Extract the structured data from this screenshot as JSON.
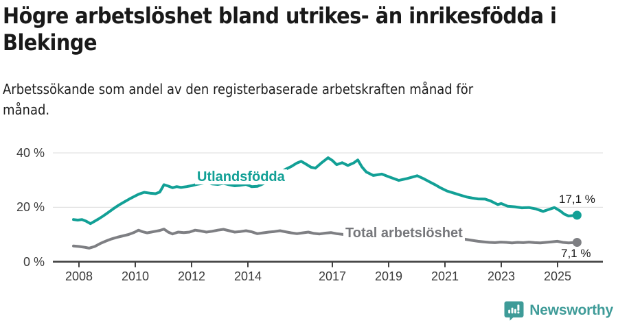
{
  "header": {
    "title_lines": [
      "Högre arbetslöshet bland utrikes- än inrikesfödda i",
      "Blekinge"
    ],
    "subtitle_lines": [
      "Arbetssökande som andel av den registerbaserade arbetskraften månad för",
      "månad."
    ]
  },
  "chart_data": {
    "type": "line",
    "title": "Högre arbetslöshet bland utrikes- än inrikesfödda i Blekinge",
    "subtitle": "Arbetssökande som andel av den registerbaserade arbetskraften månad för månad.",
    "xlabel": "",
    "ylabel": "",
    "ylim": [
      0,
      42
    ],
    "xlim": [
      2008,
      2025.9
    ],
    "grid": "horizontal-only",
    "legend_position": "inline-labels-on-lines",
    "y_ticks": [
      {
        "value": 40,
        "label": "40 %"
      },
      {
        "value": 20,
        "label": "20 %"
      },
      {
        "value": 0,
        "label": "0 %"
      }
    ],
    "x_ticks": [
      {
        "value": 2008,
        "label": "2008"
      },
      {
        "value": 2010,
        "label": "2010"
      },
      {
        "value": 2012,
        "label": "2012"
      },
      {
        "value": 2014,
        "label": "2014"
      },
      {
        "value": 2017,
        "label": "2017"
      },
      {
        "value": 2019,
        "label": "2019"
      },
      {
        "value": 2021,
        "label": "2021"
      },
      {
        "value": 2023,
        "label": "2023"
      },
      {
        "value": 2025,
        "label": "2025"
      }
    ],
    "series": [
      {
        "name": "Utlandsfödda",
        "color": "#12A096",
        "end_value": 17.1,
        "end_label": "17,1 %",
        "points": [
          [
            2008.0,
            15.5
          ],
          [
            2008.15,
            15.3
          ],
          [
            2008.3,
            15.5
          ],
          [
            2008.45,
            14.9
          ],
          [
            2008.6,
            14.0
          ],
          [
            2008.75,
            14.9
          ],
          [
            2008.9,
            15.8
          ],
          [
            2009.05,
            16.8
          ],
          [
            2009.2,
            17.9
          ],
          [
            2009.4,
            19.4
          ],
          [
            2009.6,
            20.8
          ],
          [
            2009.8,
            22.0
          ],
          [
            2010.0,
            23.2
          ],
          [
            2010.15,
            24.0
          ],
          [
            2010.3,
            24.8
          ],
          [
            2010.5,
            25.5
          ],
          [
            2010.7,
            25.2
          ],
          [
            2010.9,
            25.0
          ],
          [
            2011.05,
            25.6
          ],
          [
            2011.2,
            28.3
          ],
          [
            2011.35,
            27.8
          ],
          [
            2011.5,
            27.2
          ],
          [
            2011.65,
            27.6
          ],
          [
            2011.8,
            27.3
          ],
          [
            2012.0,
            27.6
          ],
          [
            2012.2,
            28.0
          ],
          [
            2012.4,
            28.5
          ],
          [
            2012.6,
            28.9
          ],
          [
            2012.75,
            29.2
          ],
          [
            2012.9,
            28.6
          ],
          [
            2013.1,
            28.4
          ],
          [
            2013.3,
            28.8
          ],
          [
            2013.5,
            28.3
          ],
          [
            2013.7,
            27.9
          ],
          [
            2013.9,
            28.1
          ],
          [
            2014.1,
            28.4
          ],
          [
            2014.3,
            27.6
          ],
          [
            2014.5,
            27.7
          ],
          [
            2014.7,
            28.6
          ],
          [
            2014.9,
            30.0
          ],
          [
            2015.1,
            31.5
          ],
          [
            2015.3,
            32.8
          ],
          [
            2015.5,
            34.0
          ],
          [
            2015.7,
            35.0
          ],
          [
            2015.9,
            36.3
          ],
          [
            2016.05,
            36.9
          ],
          [
            2016.2,
            36.0
          ],
          [
            2016.4,
            34.7
          ],
          [
            2016.55,
            34.4
          ],
          [
            2016.75,
            36.2
          ],
          [
            2017.0,
            38.2
          ],
          [
            2017.15,
            37.2
          ],
          [
            2017.3,
            35.7
          ],
          [
            2017.5,
            36.4
          ],
          [
            2017.7,
            35.4
          ],
          [
            2017.9,
            36.3
          ],
          [
            2018.05,
            37.4
          ],
          [
            2018.2,
            34.8
          ],
          [
            2018.35,
            33.0
          ],
          [
            2018.6,
            31.7
          ],
          [
            2018.9,
            32.2
          ],
          [
            2019.15,
            31.2
          ],
          [
            2019.5,
            29.9
          ],
          [
            2019.8,
            30.6
          ],
          [
            2020.15,
            31.6
          ],
          [
            2020.4,
            30.4
          ],
          [
            2020.6,
            29.3
          ],
          [
            2020.8,
            28.2
          ],
          [
            2020.95,
            27.3
          ],
          [
            2021.2,
            26.0
          ],
          [
            2021.45,
            25.2
          ],
          [
            2021.7,
            24.4
          ],
          [
            2021.9,
            23.8
          ],
          [
            2022.1,
            23.4
          ],
          [
            2022.3,
            23.1
          ],
          [
            2022.55,
            23.0
          ],
          [
            2022.75,
            22.3
          ],
          [
            2023.0,
            21.0
          ],
          [
            2023.12,
            21.4
          ],
          [
            2023.35,
            20.4
          ],
          [
            2023.6,
            20.2
          ],
          [
            2023.85,
            19.8
          ],
          [
            2024.1,
            19.9
          ],
          [
            2024.35,
            19.4
          ],
          [
            2024.6,
            18.5
          ],
          [
            2024.8,
            19.2
          ],
          [
            2025.0,
            19.9
          ],
          [
            2025.2,
            18.7
          ],
          [
            2025.35,
            17.5
          ],
          [
            2025.5,
            16.8
          ],
          [
            2025.8,
            17.1
          ]
        ]
      },
      {
        "name": "Total arbetslöshet",
        "color": "#7E7F83",
        "end_value": 7.1,
        "end_label": "7,1 %",
        "points": [
          [
            2008.0,
            5.8
          ],
          [
            2008.2,
            5.6
          ],
          [
            2008.4,
            5.3
          ],
          [
            2008.55,
            5.0
          ],
          [
            2008.75,
            5.6
          ],
          [
            2008.95,
            6.7
          ],
          [
            2009.15,
            7.6
          ],
          [
            2009.35,
            8.4
          ],
          [
            2009.55,
            9.0
          ],
          [
            2009.75,
            9.5
          ],
          [
            2009.95,
            10.0
          ],
          [
            2010.15,
            10.8
          ],
          [
            2010.3,
            11.6
          ],
          [
            2010.45,
            11.0
          ],
          [
            2010.6,
            10.6
          ],
          [
            2010.75,
            10.9
          ],
          [
            2010.9,
            11.2
          ],
          [
            2011.05,
            11.5
          ],
          [
            2011.2,
            12.0
          ],
          [
            2011.35,
            10.9
          ],
          [
            2011.5,
            10.2
          ],
          [
            2011.7,
            10.9
          ],
          [
            2011.9,
            10.7
          ],
          [
            2012.1,
            10.9
          ],
          [
            2012.3,
            11.6
          ],
          [
            2012.5,
            11.3
          ],
          [
            2012.7,
            10.9
          ],
          [
            2012.9,
            11.2
          ],
          [
            2013.1,
            11.6
          ],
          [
            2013.3,
            11.9
          ],
          [
            2013.5,
            11.4
          ],
          [
            2013.7,
            10.9
          ],
          [
            2013.9,
            11.1
          ],
          [
            2014.1,
            11.4
          ],
          [
            2014.3,
            11.0
          ],
          [
            2014.5,
            10.3
          ],
          [
            2014.7,
            10.6
          ],
          [
            2014.9,
            10.9
          ],
          [
            2015.1,
            11.1
          ],
          [
            2015.3,
            11.4
          ],
          [
            2015.5,
            11.0
          ],
          [
            2015.7,
            10.6
          ],
          [
            2015.9,
            10.3
          ],
          [
            2016.1,
            10.6
          ],
          [
            2016.3,
            10.9
          ],
          [
            2016.5,
            10.4
          ],
          [
            2016.7,
            10.2
          ],
          [
            2016.9,
            10.5
          ],
          [
            2017.1,
            10.7
          ],
          [
            2017.3,
            10.3
          ],
          [
            2017.55,
            10.0
          ],
          [
            2017.8,
            10.2
          ],
          [
            2018.1,
            9.9
          ],
          [
            2018.4,
            9.5
          ],
          [
            2018.7,
            9.2
          ],
          [
            2019.0,
            9.0
          ],
          [
            2019.3,
            8.8
          ],
          [
            2019.6,
            8.6
          ],
          [
            2019.9,
            9.0
          ],
          [
            2020.2,
            10.0
          ],
          [
            2020.5,
            10.4
          ],
          [
            2020.8,
            10.1
          ],
          [
            2021.1,
            9.6
          ],
          [
            2021.4,
            9.0
          ],
          [
            2021.7,
            8.5
          ],
          [
            2022.0,
            8.0
          ],
          [
            2022.3,
            7.5
          ],
          [
            2022.5,
            7.3
          ],
          [
            2022.7,
            7.1
          ],
          [
            2022.9,
            7.0
          ],
          [
            2023.1,
            7.2
          ],
          [
            2023.3,
            7.1
          ],
          [
            2023.5,
            6.9
          ],
          [
            2023.7,
            7.1
          ],
          [
            2023.9,
            7.0
          ],
          [
            2024.1,
            7.2
          ],
          [
            2024.3,
            7.0
          ],
          [
            2024.5,
            6.9
          ],
          [
            2024.7,
            7.1
          ],
          [
            2024.9,
            7.3
          ],
          [
            2025.1,
            7.5
          ],
          [
            2025.3,
            7.1
          ],
          [
            2025.5,
            6.9
          ],
          [
            2025.8,
            7.1
          ]
        ]
      }
    ],
    "style": {
      "grid_color": "#E2E2E2",
      "axis_color": "#414141",
      "line_width": 4
    }
  },
  "footer": {
    "brand": "Newsworthy",
    "brand_color": "#3E9B98",
    "logo_icon": "speech-bubble-bar-chart-icon"
  }
}
